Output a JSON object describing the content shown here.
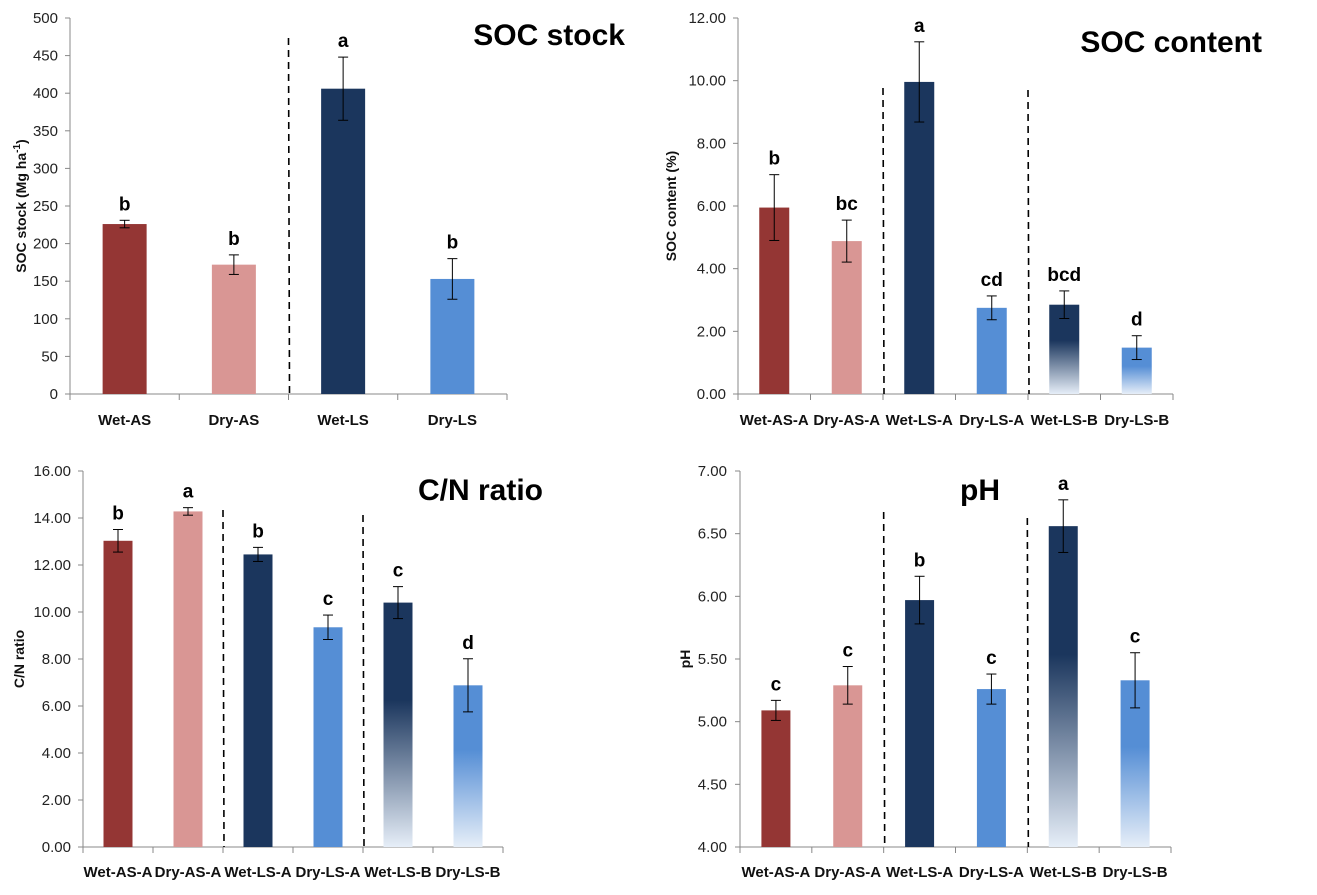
{
  "colors": {
    "wet_as": "#943634",
    "dry_as": "#D99694",
    "wet_ls": "#1B365D",
    "dry_ls": "#558ED5",
    "gradient_end": "#E6EEF8"
  },
  "chart_data": [
    {
      "id": "soc-stock",
      "type": "bar",
      "title": "SOC stock",
      "xlabel": "",
      "ylabel": "SOC stock (Mg ha-1)",
      "ylabel_main": "SOC stock (Mg ha",
      "ylabel_sup": "-1",
      "ylabel_end": ")",
      "ylim": [
        0,
        500
      ],
      "yticks": [
        "0",
        "50",
        "100",
        "150",
        "200",
        "250",
        "300",
        "350",
        "400",
        "450",
        "500"
      ],
      "ytick_values": [
        0,
        50,
        100,
        150,
        200,
        250,
        300,
        350,
        400,
        450,
        500
      ],
      "categories": [
        "Wet-AS",
        "Dry-AS",
        "Wet-LS",
        "Dry-LS"
      ],
      "values": [
        226,
        172,
        406,
        153
      ],
      "errors": [
        5,
        13,
        42,
        27
      ],
      "significance": [
        "b",
        "b",
        "a",
        "b"
      ],
      "fills": [
        "wet_as",
        "dry_as",
        "wet_ls",
        "dry_ls"
      ],
      "gradient": [
        false,
        false,
        false,
        false
      ],
      "dividers_after": [
        2
      ],
      "grid": false
    },
    {
      "id": "soc-content",
      "type": "bar",
      "title": "SOC content",
      "xlabel": "",
      "ylabel": "SOC content (%)",
      "ylim": [
        0,
        12
      ],
      "yticks": [
        "0.00",
        "2.00",
        "4.00",
        "6.00",
        "8.00",
        "10.00",
        "12.00"
      ],
      "ytick_values": [
        0,
        2,
        4,
        6,
        8,
        10,
        12
      ],
      "categories": [
        "Wet-AS-A",
        "Dry-AS-A",
        "Wet-LS-A",
        "Dry-LS-A",
        "Wet-LS-B",
        "Dry-LS-B"
      ],
      "values": [
        5.95,
        4.88,
        9.96,
        2.75,
        2.85,
        1.48
      ],
      "errors": [
        1.05,
        0.67,
        1.28,
        0.38,
        0.44,
        0.38
      ],
      "significance": [
        "b",
        "bc",
        "a",
        "cd",
        "bcd",
        "d"
      ],
      "fills": [
        "wet_as",
        "dry_as",
        "wet_ls",
        "dry_ls",
        "wet_ls",
        "dry_ls"
      ],
      "gradient": [
        false,
        false,
        false,
        false,
        true,
        true
      ],
      "dividers_after": [
        2,
        4
      ],
      "grid": false
    },
    {
      "id": "cn-ratio",
      "type": "bar",
      "title": "C/N ratio",
      "xlabel": "",
      "ylabel": "C/N ratio",
      "ylim": [
        0,
        16
      ],
      "yticks": [
        "0.00",
        "2.00",
        "4.00",
        "6.00",
        "8.00",
        "10.00",
        "12.00",
        "14.00",
        "16.00"
      ],
      "ytick_values": [
        0,
        2,
        4,
        6,
        8,
        10,
        12,
        14,
        16
      ],
      "categories": [
        "Wet-AS-A",
        "Dry-AS-A",
        "Wet-LS-A",
        "Dry-LS-A",
        "Wet-LS-B",
        "Dry-LS-B"
      ],
      "values": [
        13.03,
        14.28,
        12.45,
        9.35,
        10.4,
        6.88
      ],
      "errors": [
        0.48,
        0.16,
        0.3,
        0.52,
        0.68,
        1.13
      ],
      "significance": [
        "b",
        "a",
        "b",
        "c",
        "c",
        "d"
      ],
      "fills": [
        "wet_as",
        "dry_as",
        "wet_ls",
        "dry_ls",
        "wet_ls",
        "dry_ls"
      ],
      "gradient": [
        false,
        false,
        false,
        false,
        true,
        true
      ],
      "dividers_after": [
        2,
        4
      ],
      "grid": false
    },
    {
      "id": "ph",
      "type": "bar",
      "title": "pH",
      "xlabel": "",
      "ylabel": "pH",
      "ylim": [
        4,
        7
      ],
      "yticks": [
        "4.00",
        "4.50",
        "5.00",
        "5.50",
        "6.00",
        "6.50",
        "7.00"
      ],
      "ytick_values": [
        4,
        4.5,
        5,
        5.5,
        6,
        6.5,
        7
      ],
      "categories": [
        "Wet-AS-A",
        "Dry-AS-A",
        "Wet-LS-A",
        "Dry-LS-A",
        "Wet-LS-B",
        "Dry-LS-B"
      ],
      "values": [
        5.09,
        5.29,
        5.97,
        5.26,
        6.56,
        5.33
      ],
      "errors": [
        0.08,
        0.15,
        0.19,
        0.12,
        0.21,
        0.22
      ],
      "significance": [
        "c",
        "c",
        "b",
        "c",
        "a",
        "c"
      ],
      "fills": [
        "wet_as",
        "dry_as",
        "wet_ls",
        "dry_ls",
        "wet_ls",
        "dry_ls"
      ],
      "gradient": [
        false,
        false,
        false,
        false,
        true,
        true
      ],
      "dividers_after": [
        2,
        4
      ],
      "grid": false
    }
  ]
}
